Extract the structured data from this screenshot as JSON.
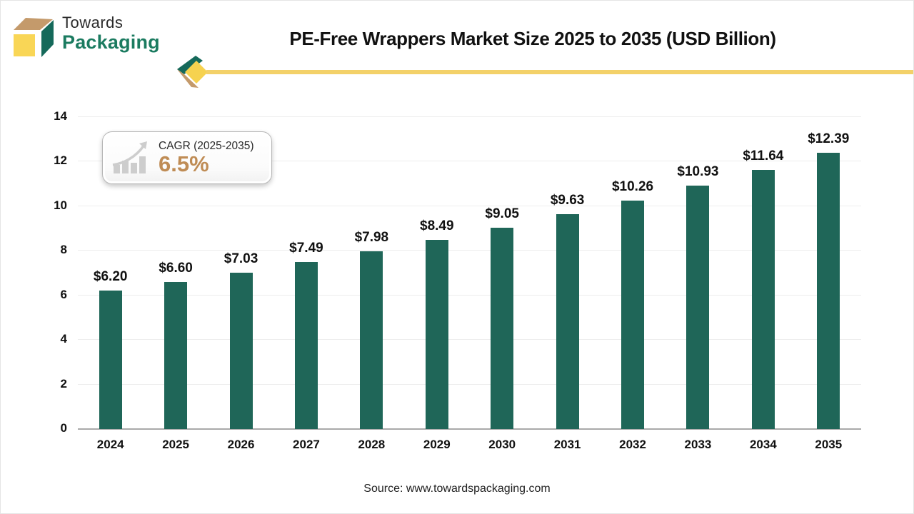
{
  "brand": {
    "line1": "Towards",
    "line2": "Packaging"
  },
  "header": {
    "title": "PE-Free Wrappers Market Size 2025 to 2035 (USD Billion)"
  },
  "cagr_badge": {
    "label": "CAGR (2025-2035)",
    "value": "6.5%"
  },
  "footer": {
    "source": "Source: www.towardspackaging.com"
  },
  "colors": {
    "bar": "#1f6658",
    "accent_yellow": "#f3d169",
    "brand_green": "#1b7b60",
    "logo_tan": "#c49a6b",
    "logo_yellow": "#f9d656",
    "cagr_value": "#bf8c55",
    "gridline": "#ededed",
    "axis_line": "#a9a9a9"
  },
  "chart_data": {
    "type": "bar",
    "title": "PE-Free Wrappers Market Size 2025 to 2035 (USD Billion)",
    "categories": [
      "2024",
      "2025",
      "2026",
      "2027",
      "2028",
      "2029",
      "2030",
      "2031",
      "2032",
      "2033",
      "2034",
      "2035"
    ],
    "values": [
      6.2,
      6.6,
      7.03,
      7.49,
      7.98,
      8.49,
      9.05,
      9.63,
      10.26,
      10.93,
      11.64,
      12.39
    ],
    "data_labels": [
      "$6.20",
      "$6.60",
      "$7.03",
      "$7.49",
      "$7.98",
      "$8.49",
      "$9.05",
      "$9.63",
      "$10.26",
      "$10.93",
      "$11.64",
      "$12.39"
    ],
    "xlabel": "",
    "ylabel": "",
    "ylim": [
      0,
      14
    ],
    "ytick_step": 2,
    "grid": true,
    "legend": false,
    "bar_color": "#1f6658",
    "source": "Source: www.towardspackaging.com",
    "annotation": "CAGR (2025-2035) 6.5%"
  }
}
